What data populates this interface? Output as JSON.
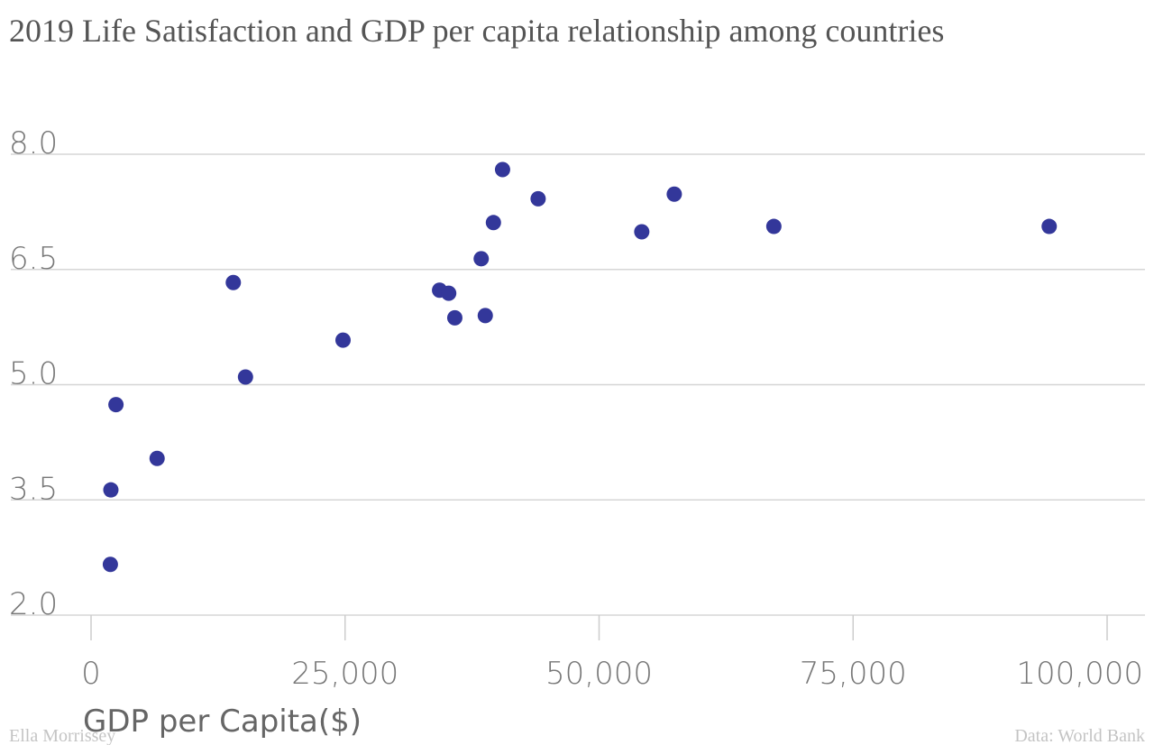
{
  "chart_data": {
    "type": "scatter",
    "title": "2019 Life Satisfaction and GDP per capita relationship among countries",
    "xlabel": "GDP per Capita($)",
    "ylabel": "",
    "xlim": [
      0,
      100000
    ],
    "ylim": [
      2.0,
      8.0
    ],
    "x_ticks": [
      {
        "value": 0,
        "label": "0"
      },
      {
        "value": 25000,
        "label": "25,000"
      },
      {
        "value": 50000,
        "label": "50,000"
      },
      {
        "value": 75000,
        "label": "75,000"
      },
      {
        "value": 100000,
        "label": "100,000"
      }
    ],
    "y_ticks": [
      {
        "value": 2.0,
        "label": "2.0"
      },
      {
        "value": 3.5,
        "label": "3.5"
      },
      {
        "value": 5.0,
        "label": "5.0"
      },
      {
        "value": 6.5,
        "label": "6.5"
      },
      {
        "value": 8.0,
        "label": "8.0"
      }
    ],
    "grid": true,
    "series": [
      {
        "color": "#33379a",
        "points": [
          {
            "x": 1900,
            "y": 2.66
          },
          {
            "x": 1950,
            "y": 3.63
          },
          {
            "x": 2450,
            "y": 4.74
          },
          {
            "x": 6500,
            "y": 4.04
          },
          {
            "x": 14000,
            "y": 6.33
          },
          {
            "x": 15200,
            "y": 5.1
          },
          {
            "x": 24800,
            "y": 5.58
          },
          {
            "x": 34300,
            "y": 6.23
          },
          {
            "x": 35200,
            "y": 6.19
          },
          {
            "x": 35800,
            "y": 5.87
          },
          {
            "x": 38400,
            "y": 6.64
          },
          {
            "x": 38800,
            "y": 5.9
          },
          {
            "x": 39600,
            "y": 7.11
          },
          {
            "x": 40500,
            "y": 7.8
          },
          {
            "x": 44000,
            "y": 7.42
          },
          {
            "x": 54200,
            "y": 6.99
          },
          {
            "x": 57400,
            "y": 7.48
          },
          {
            "x": 67200,
            "y": 7.06
          },
          {
            "x": 94300,
            "y": 7.06
          }
        ]
      }
    ]
  },
  "footer": {
    "author": "Ella Morrissey",
    "source": "Data: World Bank"
  },
  "colors": {
    "marker": "#33379a",
    "grid": "#d6d6d6",
    "title": "#555555",
    "tick_label": "#777777",
    "footer": "#c4c4c4"
  }
}
